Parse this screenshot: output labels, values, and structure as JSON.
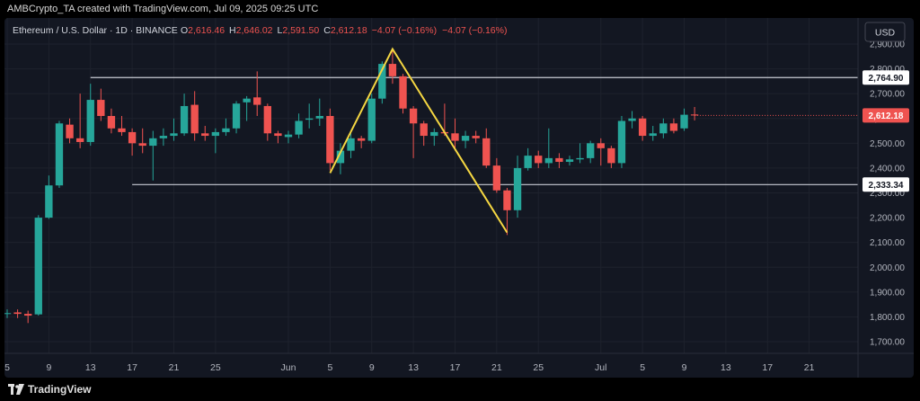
{
  "credit": "AMBCrypto_TA created with TradingView.com, Jul 09, 2025 09:25 UTC",
  "footer": {
    "brand": "TradingView",
    "logo_icon": "tradingview-logo-icon"
  },
  "currency": "USD",
  "legend": {
    "symbol": "Ethereum / U.S. Dollar · 1D · BINANCE",
    "o_label": "O",
    "o_value": "2,616.46",
    "h_label": "H",
    "h_value": "2,646.02",
    "l_label": "L",
    "l_value": "2,591.50",
    "c_label": "C",
    "c_value": "2,612.18",
    "change": "−4.07 (−0.16%)",
    "change2": "−4.07 (−0.16%)"
  },
  "colors": {
    "up": "#26a69a",
    "down": "#ef5350",
    "pattern": "#f5d742",
    "level": "#c9ccd4",
    "background": "#131722",
    "axis_text": "#b2b5be",
    "legend_value": "#ef5350"
  },
  "chart_data": {
    "type": "candlestick",
    "title": "Ethereum / U.S. Dollar · 1D · BINANCE",
    "ylim": [
      1650,
      2950
    ],
    "y_ticks": [
      {
        "value": 2900,
        "label": "2,900.00"
      },
      {
        "value": 2800,
        "label": "2,800.00"
      },
      {
        "value": 2700,
        "label": "2,700.00"
      },
      {
        "value": 2600,
        "label": "2,600.00"
      },
      {
        "value": 2500,
        "label": "2,500.00"
      },
      {
        "value": 2400,
        "label": "2,400.00"
      },
      {
        "value": 2300,
        "label": "2,300.00"
      },
      {
        "value": 2200,
        "label": "2,200.00"
      },
      {
        "value": 2100,
        "label": "2,100.00"
      },
      {
        "value": 2000,
        "label": "2,000.00"
      },
      {
        "value": 1900,
        "label": "1,900.00"
      },
      {
        "value": 1800,
        "label": "1,800.00"
      },
      {
        "value": 1700,
        "label": "1,700.00"
      }
    ],
    "x_ticks": [
      {
        "date": "2025-05-05",
        "label": "5"
      },
      {
        "date": "2025-05-09",
        "label": "9"
      },
      {
        "date": "2025-05-13",
        "label": "13"
      },
      {
        "date": "2025-05-17",
        "label": "17"
      },
      {
        "date": "2025-05-21",
        "label": "21"
      },
      {
        "date": "2025-05-25",
        "label": "25"
      },
      {
        "date": "2025-06-01",
        "label": "Jun"
      },
      {
        "date": "2025-06-05",
        "label": "5"
      },
      {
        "date": "2025-06-09",
        "label": "9"
      },
      {
        "date": "2025-06-13",
        "label": "13"
      },
      {
        "date": "2025-06-17",
        "label": "17"
      },
      {
        "date": "2025-06-21",
        "label": "21"
      },
      {
        "date": "2025-06-25",
        "label": "25"
      },
      {
        "date": "2025-07-01",
        "label": "Jul"
      },
      {
        "date": "2025-07-05",
        "label": "5"
      },
      {
        "date": "2025-07-09",
        "label": "9"
      },
      {
        "date": "2025-07-13",
        "label": "13"
      },
      {
        "date": "2025-07-17",
        "label": "17"
      },
      {
        "date": "2025-07-21",
        "label": "21"
      }
    ],
    "x_range": [
      "2025-05-05",
      "2025-07-25"
    ],
    "candles": [
      {
        "date": "2025-05-05",
        "o": 1815,
        "h": 1830,
        "l": 1795,
        "c": 1815
      },
      {
        "date": "2025-05-06",
        "o": 1818,
        "h": 1830,
        "l": 1795,
        "c": 1812
      },
      {
        "date": "2025-05-07",
        "o": 1812,
        "h": 1825,
        "l": 1775,
        "c": 1805
      },
      {
        "date": "2025-05-08",
        "o": 1810,
        "h": 2210,
        "l": 1805,
        "c": 2200
      },
      {
        "date": "2025-05-09",
        "o": 2200,
        "h": 2370,
        "l": 2195,
        "c": 2330
      },
      {
        "date": "2025-05-10",
        "o": 2330,
        "h": 2590,
        "l": 2320,
        "c": 2580
      },
      {
        "date": "2025-05-11",
        "o": 2575,
        "h": 2600,
        "l": 2500,
        "c": 2520
      },
      {
        "date": "2025-05-12",
        "o": 2520,
        "h": 2700,
        "l": 2480,
        "c": 2505
      },
      {
        "date": "2025-05-13",
        "o": 2505,
        "h": 2740,
        "l": 2490,
        "c": 2675
      },
      {
        "date": "2025-05-14",
        "o": 2675,
        "h": 2720,
        "l": 2590,
        "c": 2610
      },
      {
        "date": "2025-05-15",
        "o": 2610,
        "h": 2640,
        "l": 2540,
        "c": 2560
      },
      {
        "date": "2025-05-16",
        "o": 2560,
        "h": 2610,
        "l": 2530,
        "c": 2545
      },
      {
        "date": "2025-05-17",
        "o": 2545,
        "h": 2560,
        "l": 2450,
        "c": 2500
      },
      {
        "date": "2025-05-18",
        "o": 2500,
        "h": 2560,
        "l": 2460,
        "c": 2490
      },
      {
        "date": "2025-05-19",
        "o": 2490,
        "h": 2550,
        "l": 2350,
        "c": 2520
      },
      {
        "date": "2025-05-20",
        "o": 2520,
        "h": 2560,
        "l": 2490,
        "c": 2530
      },
      {
        "date": "2025-05-21",
        "o": 2530,
        "h": 2600,
        "l": 2510,
        "c": 2540
      },
      {
        "date": "2025-05-22",
        "o": 2540,
        "h": 2700,
        "l": 2530,
        "c": 2650
      },
      {
        "date": "2025-05-23",
        "o": 2655,
        "h": 2710,
        "l": 2510,
        "c": 2540
      },
      {
        "date": "2025-05-24",
        "o": 2540,
        "h": 2570,
        "l": 2510,
        "c": 2530
      },
      {
        "date": "2025-05-25",
        "o": 2530,
        "h": 2560,
        "l": 2460,
        "c": 2545
      },
      {
        "date": "2025-05-26",
        "o": 2545,
        "h": 2600,
        "l": 2530,
        "c": 2560
      },
      {
        "date": "2025-05-27",
        "o": 2560,
        "h": 2670,
        "l": 2540,
        "c": 2660
      },
      {
        "date": "2025-05-28",
        "o": 2665,
        "h": 2690,
        "l": 2590,
        "c": 2680
      },
      {
        "date": "2025-05-29",
        "o": 2685,
        "h": 2790,
        "l": 2610,
        "c": 2655
      },
      {
        "date": "2025-05-30",
        "o": 2650,
        "h": 2660,
        "l": 2510,
        "c": 2540
      },
      {
        "date": "2025-05-31",
        "o": 2540,
        "h": 2550,
        "l": 2500,
        "c": 2530
      },
      {
        "date": "2025-06-01",
        "o": 2525,
        "h": 2550,
        "l": 2500,
        "c": 2535
      },
      {
        "date": "2025-06-02",
        "o": 2535,
        "h": 2620,
        "l": 2520,
        "c": 2590
      },
      {
        "date": "2025-06-03",
        "o": 2595,
        "h": 2660,
        "l": 2560,
        "c": 2600
      },
      {
        "date": "2025-06-04",
        "o": 2600,
        "h": 2680,
        "l": 2570,
        "c": 2610
      },
      {
        "date": "2025-06-05",
        "o": 2610,
        "h": 2640,
        "l": 2390,
        "c": 2420
      },
      {
        "date": "2025-06-06",
        "o": 2420,
        "h": 2500,
        "l": 2375,
        "c": 2470
      },
      {
        "date": "2025-06-07",
        "o": 2470,
        "h": 2540,
        "l": 2440,
        "c": 2520
      },
      {
        "date": "2025-06-08",
        "o": 2520,
        "h": 2530,
        "l": 2480,
        "c": 2510
      },
      {
        "date": "2025-06-09",
        "o": 2510,
        "h": 2700,
        "l": 2500,
        "c": 2680
      },
      {
        "date": "2025-06-10",
        "o": 2680,
        "h": 2830,
        "l": 2660,
        "c": 2820
      },
      {
        "date": "2025-06-11",
        "o": 2820,
        "h": 2880,
        "l": 2740,
        "c": 2770
      },
      {
        "date": "2025-06-12",
        "o": 2770,
        "h": 2780,
        "l": 2620,
        "c": 2640
      },
      {
        "date": "2025-06-13",
        "o": 2640,
        "h": 2650,
        "l": 2440,
        "c": 2580
      },
      {
        "date": "2025-06-14",
        "o": 2580,
        "h": 2590,
        "l": 2490,
        "c": 2530
      },
      {
        "date": "2025-06-15",
        "o": 2530,
        "h": 2560,
        "l": 2490,
        "c": 2545
      },
      {
        "date": "2025-06-16",
        "o": 2545,
        "h": 2660,
        "l": 2530,
        "c": 2540
      },
      {
        "date": "2025-06-17",
        "o": 2540,
        "h": 2600,
        "l": 2470,
        "c": 2510
      },
      {
        "date": "2025-06-18",
        "o": 2510,
        "h": 2550,
        "l": 2480,
        "c": 2530
      },
      {
        "date": "2025-06-19",
        "o": 2530,
        "h": 2550,
        "l": 2500,
        "c": 2520
      },
      {
        "date": "2025-06-20",
        "o": 2520,
        "h": 2560,
        "l": 2400,
        "c": 2410
      },
      {
        "date": "2025-06-21",
        "o": 2410,
        "h": 2440,
        "l": 2300,
        "c": 2310
      },
      {
        "date": "2025-06-22",
        "o": 2310,
        "h": 2320,
        "l": 2130,
        "c": 2230
      },
      {
        "date": "2025-06-23",
        "o": 2230,
        "h": 2450,
        "l": 2200,
        "c": 2400
      },
      {
        "date": "2025-06-24",
        "o": 2400,
        "h": 2480,
        "l": 2390,
        "c": 2450
      },
      {
        "date": "2025-06-25",
        "o": 2450,
        "h": 2470,
        "l": 2400,
        "c": 2420
      },
      {
        "date": "2025-06-26",
        "o": 2420,
        "h": 2560,
        "l": 2400,
        "c": 2440
      },
      {
        "date": "2025-06-27",
        "o": 2440,
        "h": 2460,
        "l": 2400,
        "c": 2425
      },
      {
        "date": "2025-06-28",
        "o": 2425,
        "h": 2450,
        "l": 2410,
        "c": 2435
      },
      {
        "date": "2025-06-29",
        "o": 2435,
        "h": 2500,
        "l": 2420,
        "c": 2440
      },
      {
        "date": "2025-06-30",
        "o": 2440,
        "h": 2510,
        "l": 2420,
        "c": 2500
      },
      {
        "date": "2025-07-01",
        "o": 2500,
        "h": 2520,
        "l": 2410,
        "c": 2480
      },
      {
        "date": "2025-07-02",
        "o": 2480,
        "h": 2490,
        "l": 2400,
        "c": 2420
      },
      {
        "date": "2025-07-03",
        "o": 2420,
        "h": 2610,
        "l": 2400,
        "c": 2590
      },
      {
        "date": "2025-07-04",
        "o": 2590,
        "h": 2630,
        "l": 2560,
        "c": 2600
      },
      {
        "date": "2025-07-05",
        "o": 2600,
        "h": 2610,
        "l": 2510,
        "c": 2530
      },
      {
        "date": "2025-07-06",
        "o": 2530,
        "h": 2570,
        "l": 2510,
        "c": 2540
      },
      {
        "date": "2025-07-07",
        "o": 2540,
        "h": 2600,
        "l": 2520,
        "c": 2580
      },
      {
        "date": "2025-07-08",
        "o": 2580,
        "h": 2600,
        "l": 2540,
        "c": 2550
      },
      {
        "date": "2025-07-09",
        "o": 2560,
        "h": 2640,
        "l": 2550,
        "c": 2615
      },
      {
        "date": "2025-07-10",
        "o": 2616,
        "h": 2646,
        "l": 2592,
        "c": 2612
      }
    ],
    "levels": [
      {
        "value": 2764.9,
        "label": "2,764.90",
        "start": "2025-05-13"
      },
      {
        "value": 2333.34,
        "label": "2,333.34",
        "start": "2025-05-17"
      }
    ],
    "last_price": {
      "value": 2612.18,
      "label": "2,612.18"
    },
    "pattern": [
      {
        "date": "2025-06-05",
        "value": 2380
      },
      {
        "date": "2025-06-11",
        "value": 2880
      },
      {
        "date": "2025-06-22",
        "value": 2140
      }
    ],
    "grid": true
  }
}
